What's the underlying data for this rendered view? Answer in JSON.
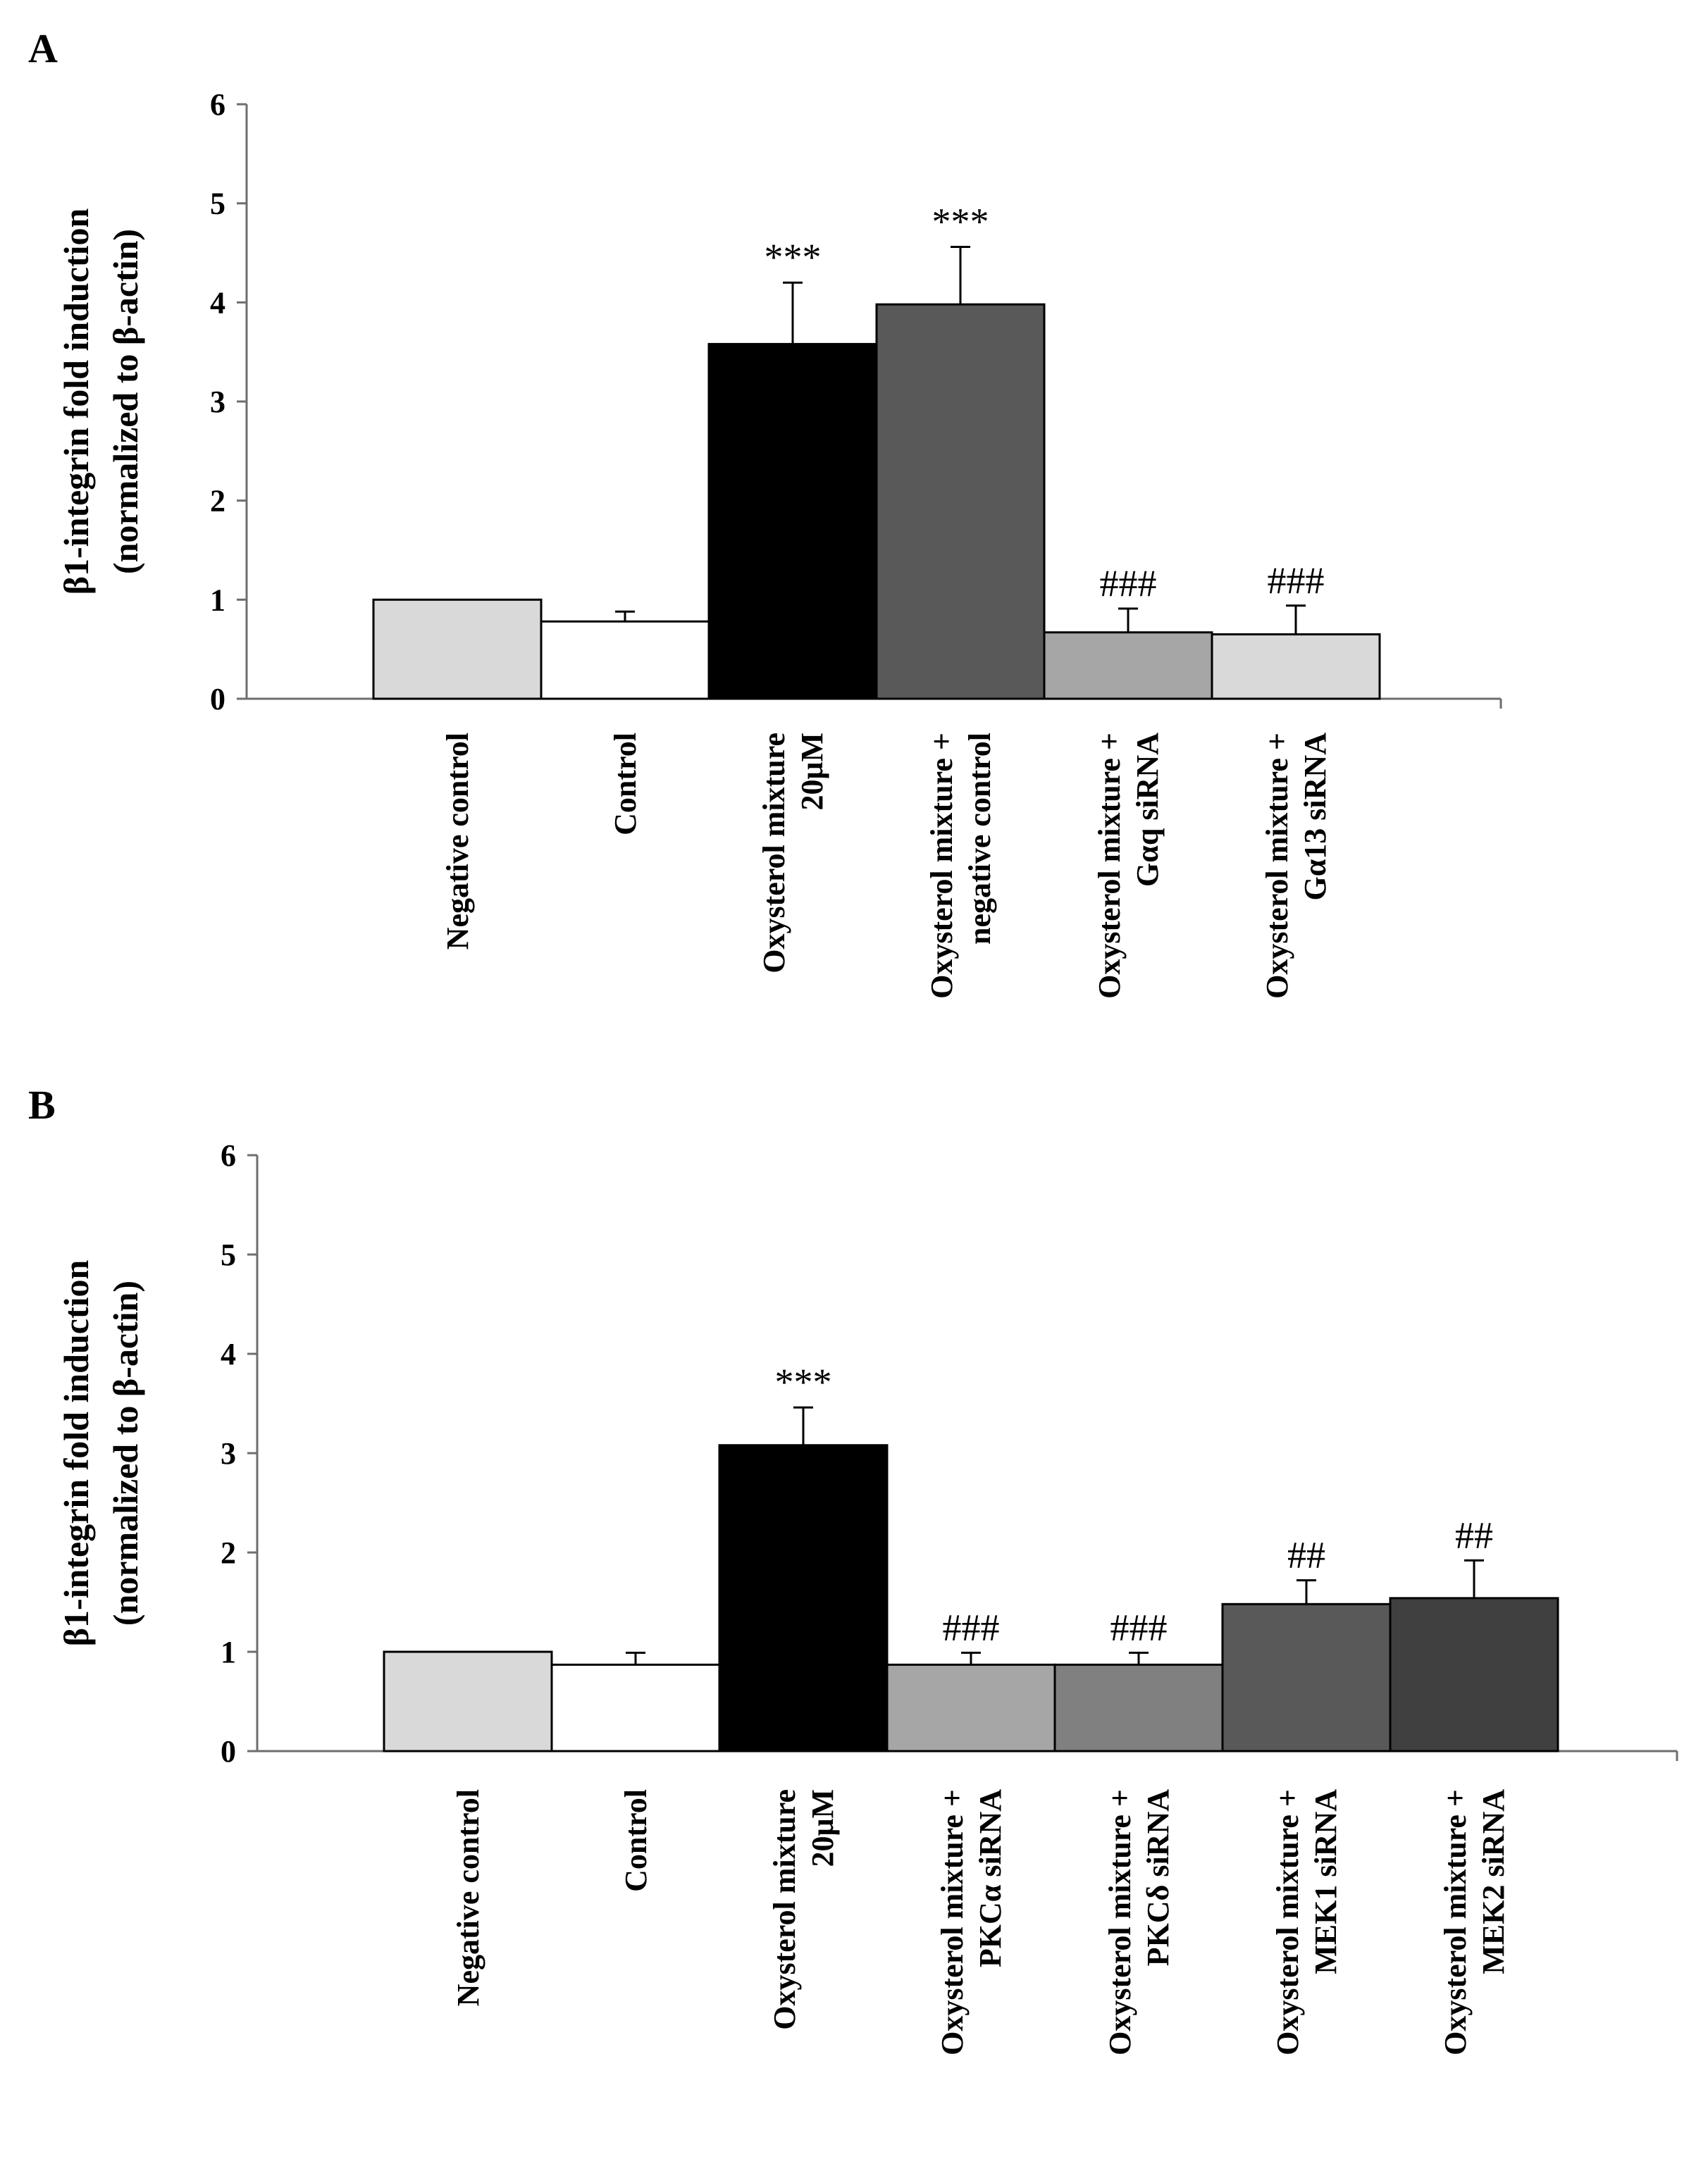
{
  "chart_data": [
    {
      "panel": "A",
      "type": "bar",
      "ylabel": [
        "β1-integrin fold induction",
        "(normalized to β-actin)"
      ],
      "ylim": [
        0,
        6
      ],
      "yticks": [
        0,
        1,
        2,
        3,
        4,
        5,
        6
      ],
      "categories": [
        [
          "Negative control"
        ],
        [
          "Control"
        ],
        [
          "Oxysterol mixture",
          "20μM"
        ],
        [
          "Oxysterol mixture +",
          "negative control"
        ],
        [
          "Oxysterol mixture +",
          "Gαq siRNA"
        ],
        [
          "Oxysterol mixture +",
          "Gα13 siRNA"
        ]
      ],
      "values": [
        1.0,
        0.78,
        3.58,
        3.98,
        0.67,
        0.65
      ],
      "errors": [
        0,
        0.1,
        0.62,
        0.58,
        0.24,
        0.29
      ],
      "annotations": [
        "",
        "",
        "***",
        "***",
        "###",
        "###"
      ],
      "colors": [
        "#d9d9d9",
        "#ffffff",
        "#000000",
        "#595959",
        "#a6a6a6",
        "#d9d9d9"
      ]
    },
    {
      "panel": "B",
      "type": "bar",
      "ylabel": [
        "β1-integrin fold induction",
        "(normalized to β-actin)"
      ],
      "ylim": [
        0,
        6
      ],
      "yticks": [
        0,
        1,
        2,
        3,
        4,
        5,
        6
      ],
      "categories": [
        [
          "Negative control"
        ],
        [
          "Control"
        ],
        [
          "Oxysterol mixture",
          "20μM"
        ],
        [
          "Oxysterol mixture +",
          "PKCα siRNA"
        ],
        [
          "Oxysterol mixture +",
          "PKCδ siRNA"
        ],
        [
          "Oxysterol mixture +",
          "MEK1 siRNA"
        ],
        [
          "Oxysterol mixture +",
          "MEK2 siRNA"
        ]
      ],
      "values": [
        1.0,
        0.87,
        3.08,
        0.87,
        0.87,
        1.48,
        1.54
      ],
      "errors": [
        0,
        0.12,
        0.38,
        0.12,
        0.12,
        0.24,
        0.38
      ],
      "annotations": [
        "",
        "",
        "***",
        "###",
        "###",
        "##",
        "##"
      ],
      "colors": [
        "#d9d9d9",
        "#ffffff",
        "#000000",
        "#a6a6a6",
        "#808080",
        "#595959",
        "#404040"
      ]
    }
  ]
}
